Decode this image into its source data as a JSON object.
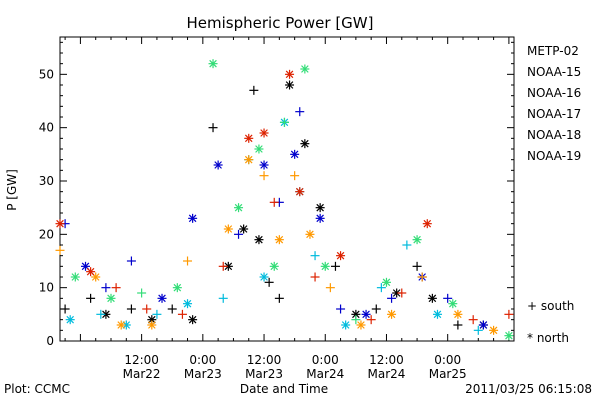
{
  "chart_data": {
    "type": "scatter",
    "title": "Hemispheric Power [GW]",
    "xlabel": "Date and Time",
    "ylabel": "P [GW]",
    "ylim": [
      0,
      57
    ],
    "yticks": [
      0,
      10,
      20,
      30,
      40,
      50
    ],
    "xlim": [
      "2011-03-21 20:00",
      "2011-03-25 13:00"
    ],
    "xticks": [
      {
        "top": "12:00",
        "bottom": "Mar22",
        "x": "2011-03-22 12:00"
      },
      {
        "top": "0:00",
        "bottom": "Mar23",
        "x": "2011-03-23 00:00"
      },
      {
        "top": "12:00",
        "bottom": "Mar23",
        "x": "2011-03-23 12:00"
      },
      {
        "top": "0:00",
        "bottom": "Mar24",
        "x": "2011-03-24 00:00"
      },
      {
        "top": "12:00",
        "bottom": "Mar24",
        "x": "2011-03-24 12:00"
      },
      {
        "top": "0:00",
        "bottom": "Mar25",
        "x": "2011-03-25 00:00"
      }
    ],
    "grid": false,
    "legend_position": "right",
    "marker_legend": {
      "plus": "+ south",
      "star": "* north"
    },
    "series": [
      {
        "name": "METP-02",
        "color": "#000000",
        "points": [
          {
            "x": "2011-03-21 21:00",
            "y": 6,
            "m": "+"
          },
          {
            "x": "2011-03-22 02:00",
            "y": 8,
            "m": "+"
          },
          {
            "x": "2011-03-22 05:00",
            "y": 5,
            "m": "*"
          },
          {
            "x": "2011-03-22 10:00",
            "y": 6,
            "m": "+"
          },
          {
            "x": "2011-03-22 14:00",
            "y": 4,
            "m": "*"
          },
          {
            "x": "2011-03-22 18:00",
            "y": 6,
            "m": "+"
          },
          {
            "x": "2011-03-22 22:00",
            "y": 4,
            "m": "*"
          },
          {
            "x": "2011-03-23 02:00",
            "y": 40,
            "m": "+"
          },
          {
            "x": "2011-03-23 05:00",
            "y": 14,
            "m": "*"
          },
          {
            "x": "2011-03-23 08:00",
            "y": 21,
            "m": "*"
          },
          {
            "x": "2011-03-23 10:00",
            "y": 47,
            "m": "+"
          },
          {
            "x": "2011-03-23 11:00",
            "y": 19,
            "m": "*"
          },
          {
            "x": "2011-03-23 13:00",
            "y": 11,
            "m": "+"
          },
          {
            "x": "2011-03-23 15:00",
            "y": 8,
            "m": "+"
          },
          {
            "x": "2011-03-23 17:00",
            "y": 48,
            "m": "*"
          },
          {
            "x": "2011-03-23 20:00",
            "y": 37,
            "m": "*"
          },
          {
            "x": "2011-03-23 23:00",
            "y": 25,
            "m": "*"
          },
          {
            "x": "2011-03-24 02:00",
            "y": 14,
            "m": "+"
          },
          {
            "x": "2011-03-24 06:00",
            "y": 5,
            "m": "*"
          },
          {
            "x": "2011-03-24 10:00",
            "y": 6,
            "m": "+"
          },
          {
            "x": "2011-03-24 14:00",
            "y": 9,
            "m": "*"
          },
          {
            "x": "2011-03-24 18:00",
            "y": 14,
            "m": "+"
          },
          {
            "x": "2011-03-24 21:00",
            "y": 8,
            "m": "*"
          },
          {
            "x": "2011-03-25 02:00",
            "y": 3,
            "m": "+"
          },
          {
            "x": "2011-03-25 07:00",
            "y": 3,
            "m": "*"
          }
        ]
      },
      {
        "name": "NOAA-15",
        "color": "#0000cc",
        "points": [
          {
            "x": "2011-03-21 21:00",
            "y": 22,
            "m": "+"
          },
          {
            "x": "2011-03-22 01:00",
            "y": 14,
            "m": "*"
          },
          {
            "x": "2011-03-22 05:00",
            "y": 10,
            "m": "+"
          },
          {
            "x": "2011-03-22 10:00",
            "y": 15,
            "m": "+"
          },
          {
            "x": "2011-03-22 16:00",
            "y": 8,
            "m": "*"
          },
          {
            "x": "2011-03-22 22:00",
            "y": 23,
            "m": "*"
          },
          {
            "x": "2011-03-23 03:00",
            "y": 33,
            "m": "*"
          },
          {
            "x": "2011-03-23 07:00",
            "y": 20,
            "m": "+"
          },
          {
            "x": "2011-03-23 12:00",
            "y": 33,
            "m": "*"
          },
          {
            "x": "2011-03-23 15:00",
            "y": 26,
            "m": "+"
          },
          {
            "x": "2011-03-23 18:00",
            "y": 35,
            "m": "*"
          },
          {
            "x": "2011-03-23 19:00",
            "y": 43,
            "m": "+"
          },
          {
            "x": "2011-03-23 23:00",
            "y": 23,
            "m": "*"
          },
          {
            "x": "2011-03-24 03:00",
            "y": 6,
            "m": "+"
          },
          {
            "x": "2011-03-24 08:00",
            "y": 5,
            "m": "*"
          },
          {
            "x": "2011-03-24 13:00",
            "y": 8,
            "m": "+"
          },
          {
            "x": "2011-03-24 19:00",
            "y": 12,
            "m": "*"
          },
          {
            "x": "2011-03-25 00:00",
            "y": 8,
            "m": "+"
          },
          {
            "x": "2011-03-25 07:00",
            "y": 3,
            "m": "*"
          }
        ]
      },
      {
        "name": "NOAA-16",
        "color": "#00bbdd",
        "points": [
          {
            "x": "2011-03-21 22:00",
            "y": 4,
            "m": "*"
          },
          {
            "x": "2011-03-22 04:00",
            "y": 5,
            "m": "+"
          },
          {
            "x": "2011-03-22 09:00",
            "y": 3,
            "m": "*"
          },
          {
            "x": "2011-03-22 15:00",
            "y": 5,
            "m": "+"
          },
          {
            "x": "2011-03-22 21:00",
            "y": 7,
            "m": "*"
          },
          {
            "x": "2011-03-23 04:00",
            "y": 8,
            "m": "+"
          },
          {
            "x": "2011-03-23 09:00",
            "y": 34,
            "m": "+"
          },
          {
            "x": "2011-03-23 12:00",
            "y": 12,
            "m": "*"
          },
          {
            "x": "2011-03-23 16:00",
            "y": 41,
            "m": "*"
          },
          {
            "x": "2011-03-23 19:00",
            "y": 28,
            "m": "*"
          },
          {
            "x": "2011-03-23 22:00",
            "y": 16,
            "m": "+"
          },
          {
            "x": "2011-03-24 04:00",
            "y": 3,
            "m": "*"
          },
          {
            "x": "2011-03-24 11:00",
            "y": 10,
            "m": "+"
          },
          {
            "x": "2011-03-24 16:00",
            "y": 18,
            "m": "+"
          },
          {
            "x": "2011-03-24 22:00",
            "y": 5,
            "m": "*"
          },
          {
            "x": "2011-03-25 06:00",
            "y": 2,
            "m": "+"
          }
        ]
      },
      {
        "name": "NOAA-17",
        "color": "#33dd77",
        "points": [
          {
            "x": "2011-03-21 23:00",
            "y": 12,
            "m": "*"
          },
          {
            "x": "2011-03-22 06:00",
            "y": 8,
            "m": "*"
          },
          {
            "x": "2011-03-22 12:00",
            "y": 9,
            "m": "+"
          },
          {
            "x": "2011-03-22 19:00",
            "y": 10,
            "m": "*"
          },
          {
            "x": "2011-03-23 02:00",
            "y": 52,
            "m": "*"
          },
          {
            "x": "2011-03-23 07:00",
            "y": 25,
            "m": "*"
          },
          {
            "x": "2011-03-23 11:00",
            "y": 36,
            "m": "*"
          },
          {
            "x": "2011-03-23 14:00",
            "y": 14,
            "m": "*"
          },
          {
            "x": "2011-03-23 16:00",
            "y": 41,
            "m": "+"
          },
          {
            "x": "2011-03-23 20:00",
            "y": 51,
            "m": "*"
          },
          {
            "x": "2011-03-24 00:00",
            "y": 14,
            "m": "*"
          },
          {
            "x": "2011-03-24 06:00",
            "y": 4,
            "m": "+"
          },
          {
            "x": "2011-03-24 12:00",
            "y": 11,
            "m": "*"
          },
          {
            "x": "2011-03-24 18:00",
            "y": 19,
            "m": "*"
          },
          {
            "x": "2011-03-25 01:00",
            "y": 7,
            "m": "*"
          },
          {
            "x": "2011-03-25 12:00",
            "y": 1,
            "m": "*"
          }
        ]
      },
      {
        "name": "NOAA-18",
        "color": "#ff9900",
        "points": [
          {
            "x": "2011-03-21 20:00",
            "y": 17,
            "m": "+"
          },
          {
            "x": "2011-03-22 03:00",
            "y": 12,
            "m": "*"
          },
          {
            "x": "2011-03-22 08:00",
            "y": 3,
            "m": "*"
          },
          {
            "x": "2011-03-22 14:00",
            "y": 3,
            "m": "*"
          },
          {
            "x": "2011-03-22 21:00",
            "y": 15,
            "m": "+"
          },
          {
            "x": "2011-03-23 05:00",
            "y": 21,
            "m": "*"
          },
          {
            "x": "2011-03-23 09:00",
            "y": 34,
            "m": "*"
          },
          {
            "x": "2011-03-23 12:00",
            "y": 31,
            "m": "+"
          },
          {
            "x": "2011-03-23 15:00",
            "y": 19,
            "m": "*"
          },
          {
            "x": "2011-03-23 18:00",
            "y": 31,
            "m": "+"
          },
          {
            "x": "2011-03-23 21:00",
            "y": 20,
            "m": "*"
          },
          {
            "x": "2011-03-24 01:00",
            "y": 10,
            "m": "+"
          },
          {
            "x": "2011-03-24 07:00",
            "y": 3,
            "m": "*"
          },
          {
            "x": "2011-03-24 13:00",
            "y": 5,
            "m": "*"
          },
          {
            "x": "2011-03-24 19:00",
            "y": 12,
            "m": "+"
          },
          {
            "x": "2011-03-25 02:00",
            "y": 5,
            "m": "*"
          },
          {
            "x": "2011-03-25 09:00",
            "y": 2,
            "m": "*"
          }
        ]
      },
      {
        "name": "NOAA-19",
        "color": "#dd2200",
        "points": [
          {
            "x": "2011-03-21 20:00",
            "y": 22,
            "m": "*"
          },
          {
            "x": "2011-03-22 02:00",
            "y": 13,
            "m": "*"
          },
          {
            "x": "2011-03-22 07:00",
            "y": 10,
            "m": "+"
          },
          {
            "x": "2011-03-22 13:00",
            "y": 6,
            "m": "+"
          },
          {
            "x": "2011-03-22 20:00",
            "y": 5,
            "m": "+"
          },
          {
            "x": "2011-03-23 04:00",
            "y": 14,
            "m": "+"
          },
          {
            "x": "2011-03-23 09:00",
            "y": 38,
            "m": "*"
          },
          {
            "x": "2011-03-23 12:00",
            "y": 39,
            "m": "*"
          },
          {
            "x": "2011-03-23 14:00",
            "y": 26,
            "m": "+"
          },
          {
            "x": "2011-03-23 17:00",
            "y": 50,
            "m": "*"
          },
          {
            "x": "2011-03-23 19:00",
            "y": 28,
            "m": "*"
          },
          {
            "x": "2011-03-23 22:00",
            "y": 12,
            "m": "+"
          },
          {
            "x": "2011-03-24 03:00",
            "y": 16,
            "m": "*"
          },
          {
            "x": "2011-03-24 09:00",
            "y": 4,
            "m": "+"
          },
          {
            "x": "2011-03-24 15:00",
            "y": 9,
            "m": "+"
          },
          {
            "x": "2011-03-24 20:00",
            "y": 22,
            "m": "*"
          },
          {
            "x": "2011-03-25 05:00",
            "y": 4,
            "m": "+"
          },
          {
            "x": "2011-03-25 12:00",
            "y": 5,
            "m": "+"
          }
        ]
      }
    ]
  },
  "footer": {
    "left": "Plot: CCMC",
    "right": "2011/03/25 06:15:08"
  }
}
